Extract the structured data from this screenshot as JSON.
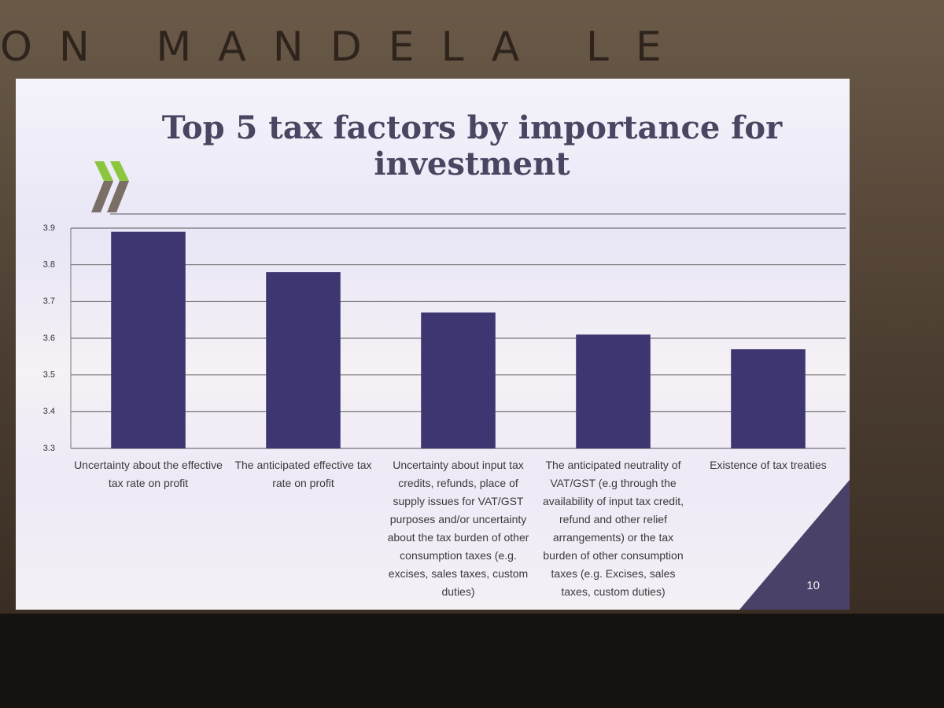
{
  "backdrop_text": "ON MANDELA LE",
  "page_number": "10",
  "chart_data": {
    "type": "bar",
    "title": "Top 5 tax factors by importance for investment",
    "categories": [
      "Uncertainty about the effective tax rate on profit",
      "The anticipated effective tax rate on profit",
      "Uncertainty about input tax credits, refunds, place of supply issues for VAT/GST purposes and/or uncertainty about the tax burden of other consumption taxes (e.g. excises, sales taxes, custom duties)",
      "The anticipated neutrality of VAT/GST (e.g through the availability of input tax credit, refund and other relief arrangements) or the tax burden of other consumption taxes (e.g. Excises, sales taxes, custom duties)",
      "Existence of tax treaties"
    ],
    "values": [
      3.89,
      3.78,
      3.67,
      3.61,
      3.57
    ],
    "color": "#3d3670",
    "ylim": [
      3.3,
      3.9
    ],
    "yticks": [
      3.3,
      3.4,
      3.5,
      3.6,
      3.7,
      3.8,
      3.9
    ],
    "grid": true
  }
}
